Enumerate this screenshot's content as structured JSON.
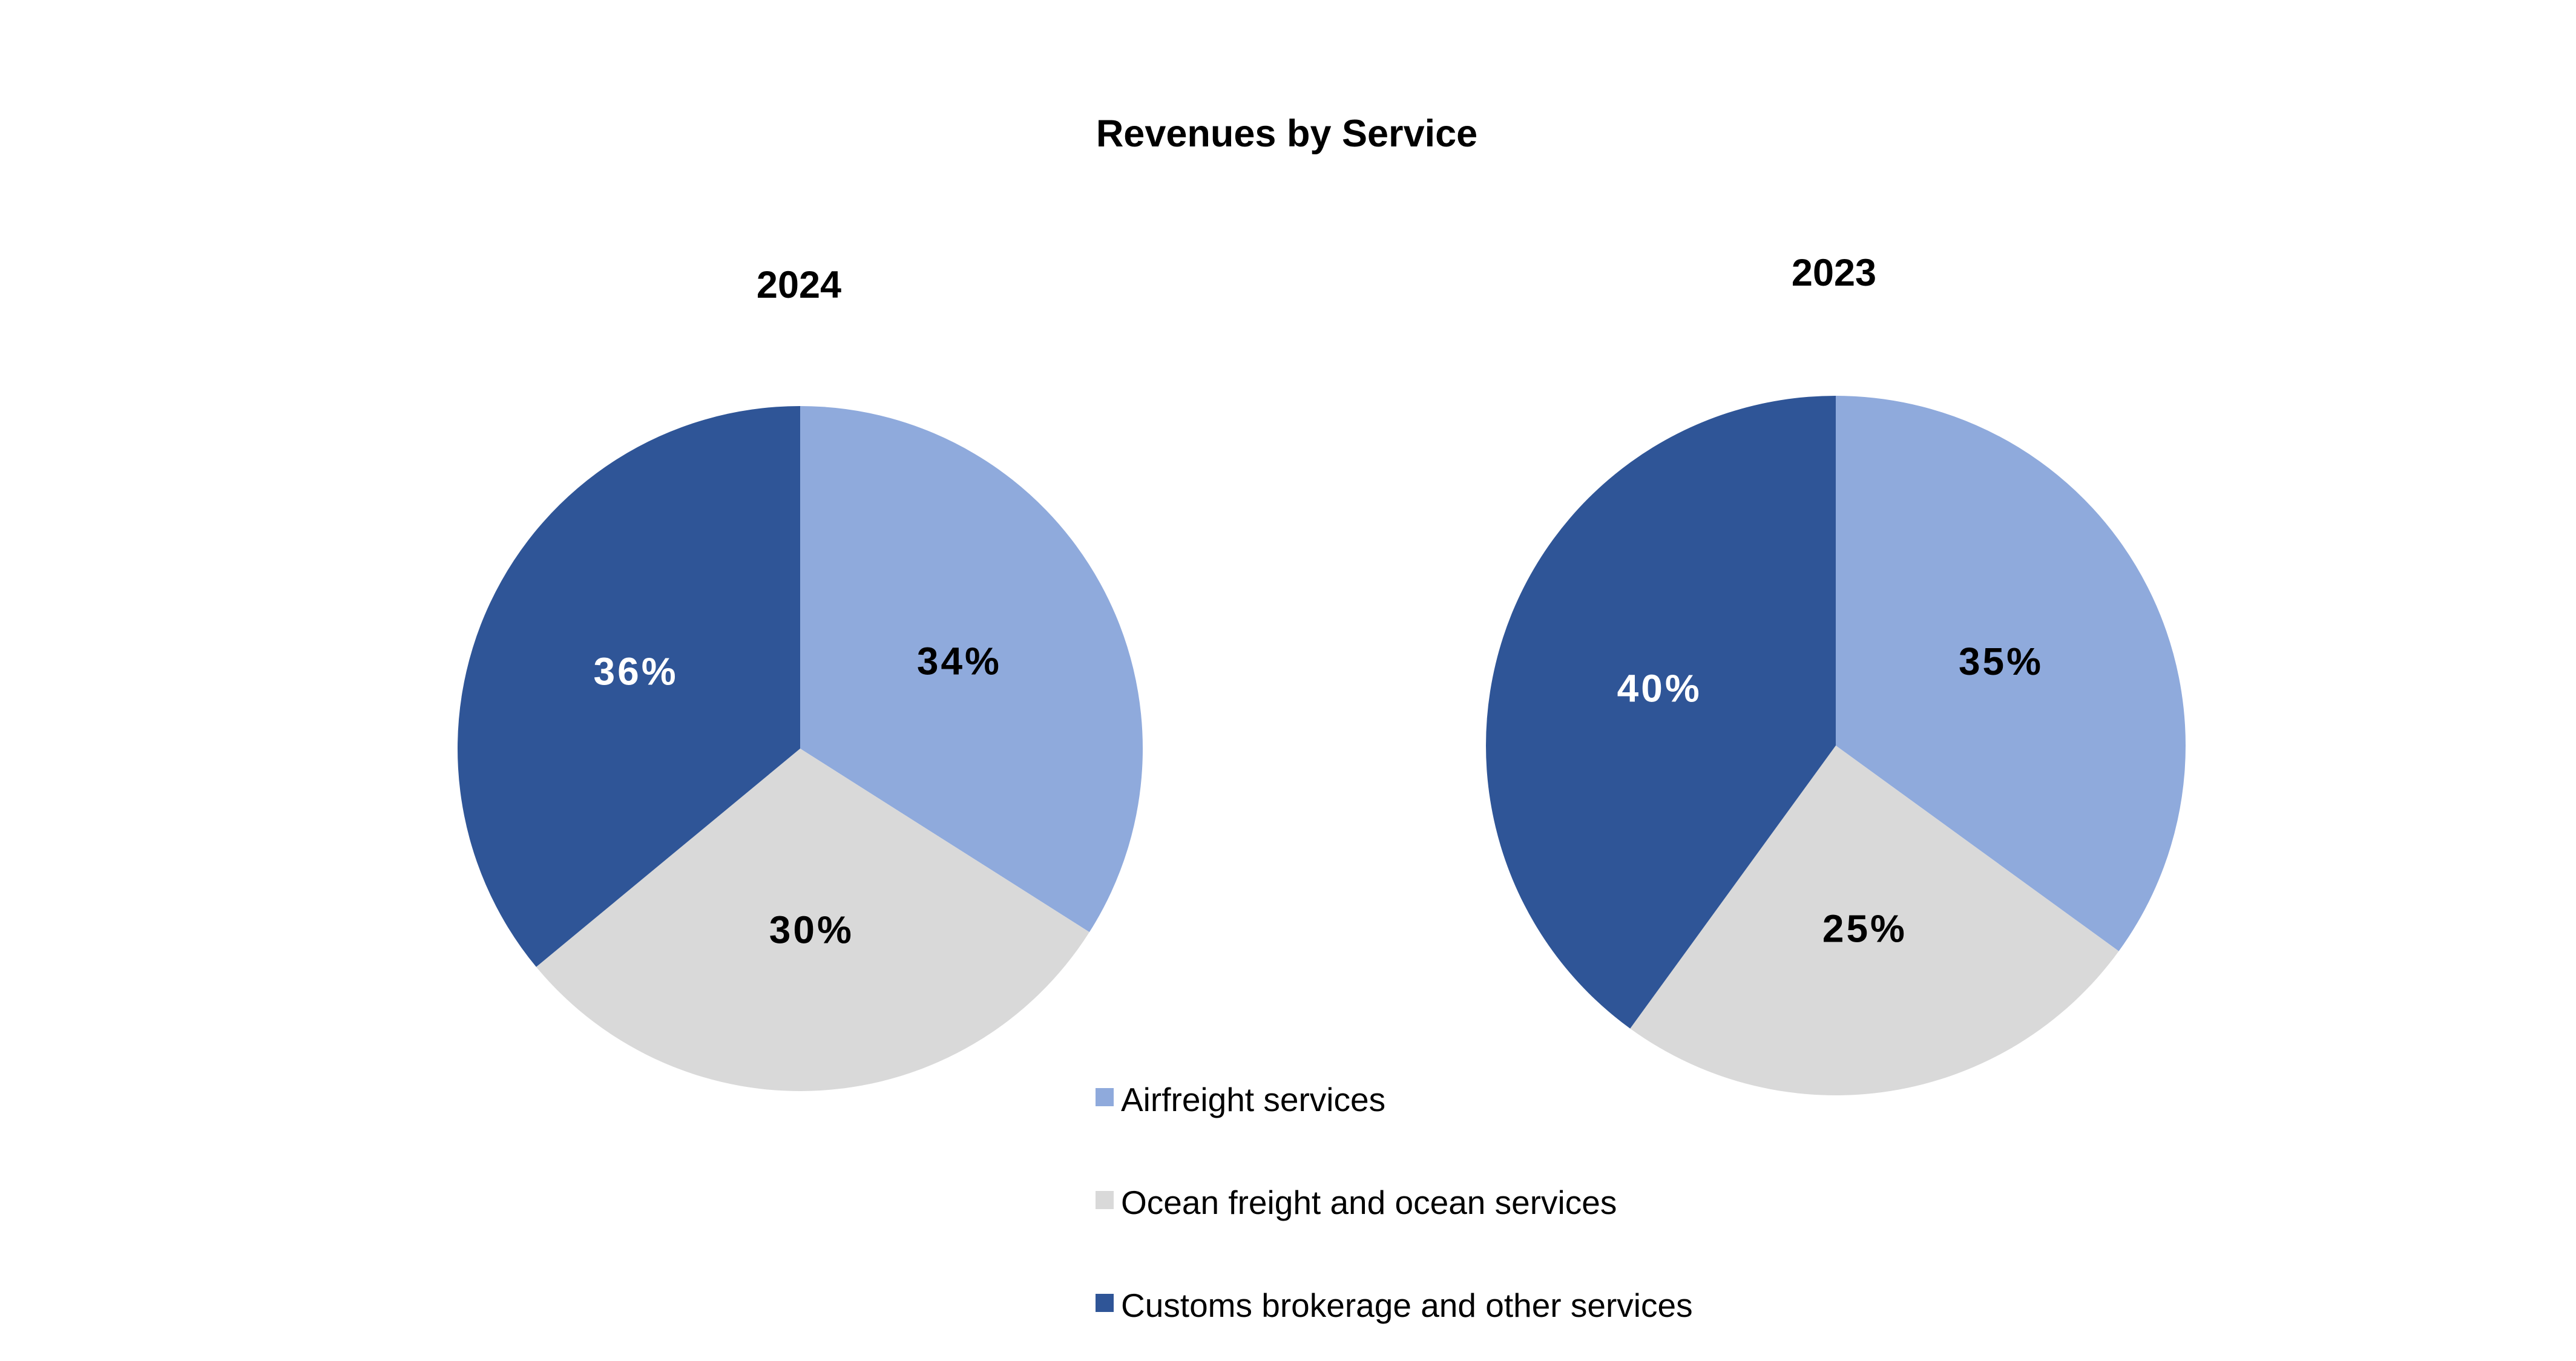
{
  "chart_data": {
    "type": "pie",
    "title": "Revenues by Service",
    "categories": [
      "Airfreight services",
      "Ocean freight and ocean services",
      "Customs brokerage and other services"
    ],
    "colors": [
      "#8FAADC",
      "#D9D9D9",
      "#2F5597"
    ],
    "label_colors": [
      "#000000",
      "#000000",
      "#ffffff"
    ],
    "pies": [
      {
        "title": "2024",
        "values": [
          34,
          30,
          36
        ],
        "labels": [
          "34%",
          "30%",
          "36%"
        ]
      },
      {
        "title": "2023",
        "values": [
          35,
          25,
          40
        ],
        "labels": [
          "35%",
          "25%",
          "40%"
        ]
      }
    ],
    "legend_position": "bottom-center"
  }
}
